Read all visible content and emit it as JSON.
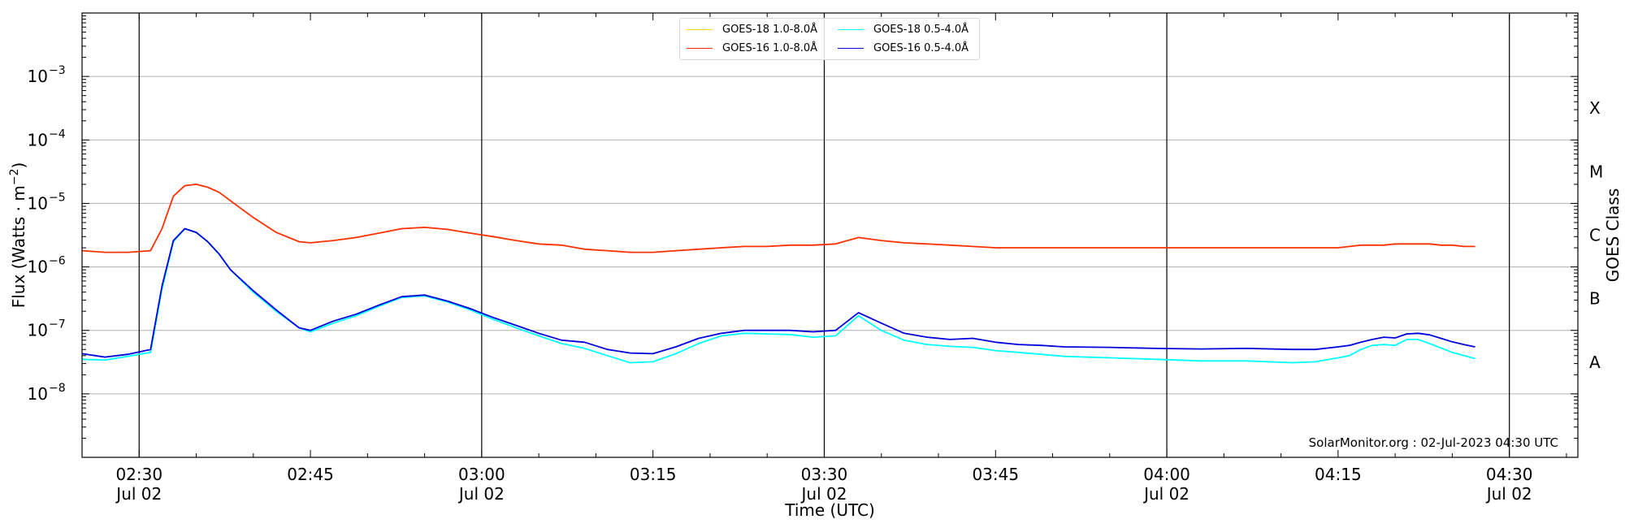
{
  "chart_data": {
    "type": "line",
    "xlabel": "Time (UTC)",
    "ylabel_base": "Flux (Watts · m",
    "ylabel_exp": "−2",
    "right_ylabel": "GOES Class",
    "y_scale": "log",
    "ylim": [
      1e-09,
      0.01
    ],
    "xlim": [
      "02:25",
      "04:36"
    ],
    "grid": "horizontal at decades, vertical lines at half hours",
    "x_ticks": [
      {
        "time": "02:30",
        "label": "02:30",
        "sub": "Jul 02"
      },
      {
        "time": "02:45",
        "label": "02:45",
        "sub": ""
      },
      {
        "time": "03:00",
        "label": "03:00",
        "sub": "Jul 02"
      },
      {
        "time": "03:15",
        "label": "03:15",
        "sub": ""
      },
      {
        "time": "03:30",
        "label": "03:30",
        "sub": "Jul 02"
      },
      {
        "time": "03:45",
        "label": "03:45",
        "sub": ""
      },
      {
        "time": "04:00",
        "label": "04:00",
        "sub": "Jul 02"
      },
      {
        "time": "04:15",
        "label": "04:15",
        "sub": ""
      },
      {
        "time": "04:30",
        "label": "04:30",
        "sub": "Jul 02"
      }
    ],
    "y_ticks": [
      {
        "value": 1e-08,
        "exp": "−8"
      },
      {
        "value": 1e-07,
        "exp": "−7"
      },
      {
        "value": 1e-06,
        "exp": "−6"
      },
      {
        "value": 1e-05,
        "exp": "−5"
      },
      {
        "value": 0.0001,
        "exp": "−4"
      },
      {
        "value": 0.001,
        "exp": "−3"
      }
    ],
    "goes_classes": [
      {
        "label": "A",
        "value": 3.16e-08
      },
      {
        "label": "B",
        "value": 3.16e-07
      },
      {
        "label": "C",
        "value": 3.16e-06
      },
      {
        "label": "M",
        "value": 3.16e-05
      },
      {
        "label": "X",
        "value": 0.000316
      }
    ],
    "series": [
      {
        "name": "GOES-18 1.0-8.0Å",
        "color": "#ffd700",
        "times": [],
        "values": []
      },
      {
        "name": "GOES-18 0.5-4.0Å",
        "color": "#00ffff",
        "times": [
          "02:25",
          "02:27",
          "02:29",
          "02:31",
          "02:32",
          "02:33",
          "02:34",
          "02:35",
          "02:36",
          "02:37",
          "02:38",
          "02:40",
          "02:42",
          "02:44",
          "02:45",
          "02:47",
          "02:49",
          "02:51",
          "02:53",
          "02:55",
          "02:57",
          "02:59",
          "03:01",
          "03:03",
          "03:05",
          "03:07",
          "03:09",
          "03:11",
          "03:13",
          "03:15",
          "03:17",
          "03:19",
          "03:21",
          "03:23",
          "03:25",
          "03:27",
          "03:29",
          "03:31",
          "03:33",
          "03:35",
          "03:37",
          "03:39",
          "03:41",
          "03:43",
          "03:45",
          "03:47",
          "03:49",
          "03:51",
          "03:55",
          "03:59",
          "04:03",
          "04:07",
          "04:11",
          "04:13",
          "04:15",
          "04:16",
          "04:17",
          "04:18",
          "04:19",
          "04:20",
          "04:21",
          "04:22",
          "04:23",
          "04:24",
          "04:25",
          "04:26",
          "04:27"
        ],
        "values": [
          3.5e-08,
          3.4e-08,
          3.9e-08,
          4.5e-08,
          4.5e-07,
          2.5e-06,
          4e-06,
          3.5e-06,
          2.5e-06,
          1.6e-06,
          9e-07,
          4e-07,
          2e-07,
          1.1e-07,
          9.5e-08,
          1.3e-07,
          1.7e-07,
          2.4e-07,
          3.3e-07,
          3.5e-07,
          2.8e-07,
          2.1e-07,
          1.5e-07,
          1.1e-07,
          8.2e-08,
          6.2e-08,
          5.2e-08,
          4e-08,
          3.1e-08,
          3.2e-08,
          4.3e-08,
          6.2e-08,
          8.2e-08,
          9e-08,
          8.8e-08,
          8.6e-08,
          7.8e-08,
          8.2e-08,
          1.7e-07,
          1e-07,
          7e-08,
          6e-08,
          5.6e-08,
          5.4e-08,
          4.8e-08,
          4.5e-08,
          4.2e-08,
          3.9e-08,
          3.7e-08,
          3.5e-08,
          3.3e-08,
          3.3e-08,
          3.1e-08,
          3.2e-08,
          3.7e-08,
          4e-08,
          5e-08,
          5.8e-08,
          6e-08,
          5.8e-08,
          7.2e-08,
          7.2e-08,
          6.2e-08,
          5.3e-08,
          4.5e-08,
          4e-08,
          3.6e-08
        ]
      },
      {
        "name": "GOES-16 1.0-8.0Å",
        "color": "#ff3000",
        "times": [
          "02:25",
          "02:27",
          "02:29",
          "02:31",
          "02:32",
          "02:33",
          "02:34",
          "02:35",
          "02:36",
          "02:37",
          "02:38",
          "02:40",
          "02:42",
          "02:44",
          "02:45",
          "02:47",
          "02:49",
          "02:51",
          "02:53",
          "02:55",
          "02:57",
          "02:59",
          "03:01",
          "03:03",
          "03:05",
          "03:07",
          "03:09",
          "03:11",
          "03:13",
          "03:15",
          "03:17",
          "03:19",
          "03:21",
          "03:23",
          "03:25",
          "03:27",
          "03:29",
          "03:31",
          "03:33",
          "03:35",
          "03:37",
          "03:39",
          "03:41",
          "03:43",
          "03:45",
          "03:47",
          "03:49",
          "03:51",
          "03:55",
          "03:59",
          "04:03",
          "04:07",
          "04:11",
          "04:13",
          "04:15",
          "04:16",
          "04:17",
          "04:18",
          "04:19",
          "04:20",
          "04:21",
          "04:22",
          "04:23",
          "04:24",
          "04:25",
          "04:26",
          "04:27"
        ],
        "values": [
          1.8e-06,
          1.7e-06,
          1.7e-06,
          1.8e-06,
          4e-06,
          1.3e-05,
          1.9e-05,
          2e-05,
          1.8e-05,
          1.5e-05,
          1.1e-05,
          6e-06,
          3.5e-06,
          2.5e-06,
          2.4e-06,
          2.6e-06,
          2.9e-06,
          3.4e-06,
          4e-06,
          4.2e-06,
          3.9e-06,
          3.4e-06,
          3e-06,
          2.6e-06,
          2.3e-06,
          2.2e-06,
          1.9e-06,
          1.8e-06,
          1.7e-06,
          1.7e-06,
          1.8e-06,
          1.9e-06,
          2e-06,
          2.1e-06,
          2.1e-06,
          2.2e-06,
          2.2e-06,
          2.3e-06,
          2.9e-06,
          2.6e-06,
          2.4e-06,
          2.3e-06,
          2.2e-06,
          2.1e-06,
          2e-06,
          2e-06,
          2e-06,
          2e-06,
          2e-06,
          2e-06,
          2e-06,
          2e-06,
          2e-06,
          2e-06,
          2e-06,
          2.1e-06,
          2.2e-06,
          2.2e-06,
          2.2e-06,
          2.3e-06,
          2.3e-06,
          2.3e-06,
          2.3e-06,
          2.2e-06,
          2.2e-06,
          2.1e-06,
          2.1e-06
        ]
      },
      {
        "name": "GOES-16 0.5-4.0Å",
        "color": "#0000dd",
        "times": [
          "02:25",
          "02:27",
          "02:29",
          "02:31",
          "02:32",
          "02:33",
          "02:34",
          "02:35",
          "02:36",
          "02:37",
          "02:38",
          "02:40",
          "02:42",
          "02:44",
          "02:45",
          "02:47",
          "02:49",
          "02:51",
          "02:53",
          "02:55",
          "02:57",
          "02:59",
          "03:01",
          "03:03",
          "03:05",
          "03:07",
          "03:09",
          "03:11",
          "03:13",
          "03:15",
          "03:17",
          "03:19",
          "03:21",
          "03:23",
          "03:25",
          "03:27",
          "03:29",
          "03:31",
          "03:33",
          "03:35",
          "03:37",
          "03:39",
          "03:41",
          "03:43",
          "03:45",
          "03:47",
          "03:49",
          "03:51",
          "03:55",
          "03:59",
          "04:03",
          "04:07",
          "04:11",
          "04:13",
          "04:15",
          "04:16",
          "04:17",
          "04:18",
          "04:19",
          "04:20",
          "04:21",
          "04:22",
          "04:23",
          "04:24",
          "04:25",
          "04:26",
          "04:27"
        ],
        "values": [
          4.3e-08,
          3.8e-08,
          4.2e-08,
          5e-08,
          5e-07,
          2.6e-06,
          4e-06,
          3.5e-06,
          2.5e-06,
          1.6e-06,
          9e-07,
          4.2e-07,
          2.1e-07,
          1.1e-07,
          1e-07,
          1.4e-07,
          1.8e-07,
          2.5e-07,
          3.4e-07,
          3.6e-07,
          2.9e-07,
          2.2e-07,
          1.6e-07,
          1.2e-07,
          9e-08,
          7e-08,
          6.5e-08,
          5e-08,
          4.4e-08,
          4.3e-08,
          5.5e-08,
          7.5e-08,
          9e-08,
          1e-07,
          1e-07,
          1e-07,
          9.5e-08,
          1e-07,
          1.9e-07,
          1.3e-07,
          9e-08,
          7.8e-08,
          7.2e-08,
          7.5e-08,
          6.5e-08,
          6e-08,
          5.8e-08,
          5.5e-08,
          5.4e-08,
          5.2e-08,
          5.1e-08,
          5.2e-08,
          5e-08,
          5e-08,
          5.5e-08,
          5.8e-08,
          6.5e-08,
          7.2e-08,
          7.8e-08,
          7.6e-08,
          8.8e-08,
          9e-08,
          8.5e-08,
          7.5e-08,
          6.6e-08,
          6e-08,
          5.5e-08
        ]
      }
    ]
  },
  "credit": "SolarMonitor.org : 02-Jul-2023 04:30 UTC"
}
